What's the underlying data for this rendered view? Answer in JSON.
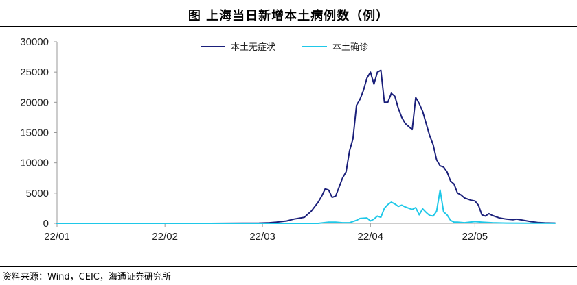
{
  "title": "图    上海当日新增本土病例数（例）",
  "source": "资料来源：Wind，CEIC，海通证券研究所",
  "chart_data": {
    "type": "line",
    "x_start": "2022-01-01",
    "x_end": "2022-05-24",
    "x_tick_labels": [
      "22/01",
      "22/02",
      "22/03",
      "22/04",
      "22/05"
    ],
    "x_tick_dates": [
      "2022-01-01",
      "2022-02-01",
      "2022-03-01",
      "2022-04-01",
      "2022-05-01"
    ],
    "ylim": [
      0,
      30000
    ],
    "y_ticks": [
      0,
      5000,
      10000,
      15000,
      20000,
      25000,
      30000
    ],
    "legend_position": "top-center",
    "series": [
      {
        "name": "本土无症状",
        "color": "#1a1f7a",
        "points": [
          [
            "2022-01-01",
            0
          ],
          [
            "2022-02-14",
            0
          ],
          [
            "2022-02-28",
            50
          ],
          [
            "2022-03-03",
            100
          ],
          [
            "2022-03-05",
            200
          ],
          [
            "2022-03-08",
            400
          ],
          [
            "2022-03-10",
            700
          ],
          [
            "2022-03-12",
            900
          ],
          [
            "2022-03-13",
            1000
          ],
          [
            "2022-03-15",
            2000
          ],
          [
            "2022-03-17",
            3500
          ],
          [
            "2022-03-18",
            4500
          ],
          [
            "2022-03-19",
            5700
          ],
          [
            "2022-03-20",
            5500
          ],
          [
            "2022-03-21",
            4300
          ],
          [
            "2022-03-22",
            4500
          ],
          [
            "2022-03-23",
            6000
          ],
          [
            "2022-03-24",
            7500
          ],
          [
            "2022-03-25",
            8500
          ],
          [
            "2022-03-26",
            12000
          ],
          [
            "2022-03-27",
            14000
          ],
          [
            "2022-03-28",
            19500
          ],
          [
            "2022-03-29",
            20500
          ],
          [
            "2022-03-30",
            22000
          ],
          [
            "2022-03-31",
            24000
          ],
          [
            "2022-04-01",
            25000
          ],
          [
            "2022-04-02",
            23000
          ],
          [
            "2022-04-03",
            25000
          ],
          [
            "2022-04-04",
            25300
          ],
          [
            "2022-04-05",
            20000
          ],
          [
            "2022-04-06",
            20000
          ],
          [
            "2022-04-07",
            21500
          ],
          [
            "2022-04-08",
            21000
          ],
          [
            "2022-04-09",
            19000
          ],
          [
            "2022-04-10",
            17500
          ],
          [
            "2022-04-11",
            16500
          ],
          [
            "2022-04-12",
            16000
          ],
          [
            "2022-04-13",
            15500
          ],
          [
            "2022-04-14",
            20800
          ],
          [
            "2022-04-15",
            19800
          ],
          [
            "2022-04-16",
            18500
          ],
          [
            "2022-04-17",
            16500
          ],
          [
            "2022-04-18",
            14500
          ],
          [
            "2022-04-19",
            13000
          ],
          [
            "2022-04-20",
            10500
          ],
          [
            "2022-04-21",
            9500
          ],
          [
            "2022-04-22",
            9300
          ],
          [
            "2022-04-23",
            8500
          ],
          [
            "2022-04-24",
            7000
          ],
          [
            "2022-04-25",
            6500
          ],
          [
            "2022-04-26",
            5000
          ],
          [
            "2022-04-27",
            4700
          ],
          [
            "2022-04-28",
            4200
          ],
          [
            "2022-04-29",
            4000
          ],
          [
            "2022-04-30",
            3800
          ],
          [
            "2022-05-01",
            3700
          ],
          [
            "2022-05-02",
            3000
          ],
          [
            "2022-05-03",
            1400
          ],
          [
            "2022-05-04",
            1200
          ],
          [
            "2022-05-05",
            1600
          ],
          [
            "2022-05-06",
            1300
          ],
          [
            "2022-05-08",
            900
          ],
          [
            "2022-05-10",
            700
          ],
          [
            "2022-05-12",
            600
          ],
          [
            "2022-05-13",
            700
          ],
          [
            "2022-05-15",
            500
          ],
          [
            "2022-05-17",
            300
          ],
          [
            "2022-05-19",
            150
          ],
          [
            "2022-05-21",
            80
          ],
          [
            "2022-05-24",
            50
          ]
        ]
      },
      {
        "name": "本土确诊",
        "color": "#1fc8e8",
        "points": [
          [
            "2022-01-01",
            0
          ],
          [
            "2022-03-17",
            0
          ],
          [
            "2022-03-20",
            200
          ],
          [
            "2022-03-22",
            200
          ],
          [
            "2022-03-24",
            100
          ],
          [
            "2022-03-26",
            100
          ],
          [
            "2022-03-28",
            500
          ],
          [
            "2022-03-29",
            800
          ],
          [
            "2022-03-31",
            900
          ],
          [
            "2022-04-01",
            400
          ],
          [
            "2022-04-02",
            700
          ],
          [
            "2022-04-03",
            1200
          ],
          [
            "2022-04-04",
            1000
          ],
          [
            "2022-04-05",
            2500
          ],
          [
            "2022-04-06",
            3100
          ],
          [
            "2022-04-07",
            3500
          ],
          [
            "2022-04-08",
            3200
          ],
          [
            "2022-04-09",
            2800
          ],
          [
            "2022-04-10",
            3000
          ],
          [
            "2022-04-11",
            2700
          ],
          [
            "2022-04-12",
            2500
          ],
          [
            "2022-04-13",
            2300
          ],
          [
            "2022-04-14",
            2600
          ],
          [
            "2022-04-15",
            1400
          ],
          [
            "2022-04-16",
            2400
          ],
          [
            "2022-04-17",
            1800
          ],
          [
            "2022-04-18",
            1300
          ],
          [
            "2022-04-19",
            1200
          ],
          [
            "2022-04-20",
            2000
          ],
          [
            "2022-04-21",
            5500
          ],
          [
            "2022-04-22",
            1900
          ],
          [
            "2022-04-23",
            1400
          ],
          [
            "2022-04-24",
            500
          ],
          [
            "2022-04-25",
            200
          ],
          [
            "2022-04-26",
            200
          ],
          [
            "2022-04-28",
            100
          ],
          [
            "2022-05-01",
            300
          ],
          [
            "2022-05-03",
            200
          ],
          [
            "2022-05-06",
            100
          ],
          [
            "2022-05-10",
            50
          ],
          [
            "2022-05-15",
            30
          ],
          [
            "2022-05-24",
            10
          ]
        ]
      }
    ]
  }
}
